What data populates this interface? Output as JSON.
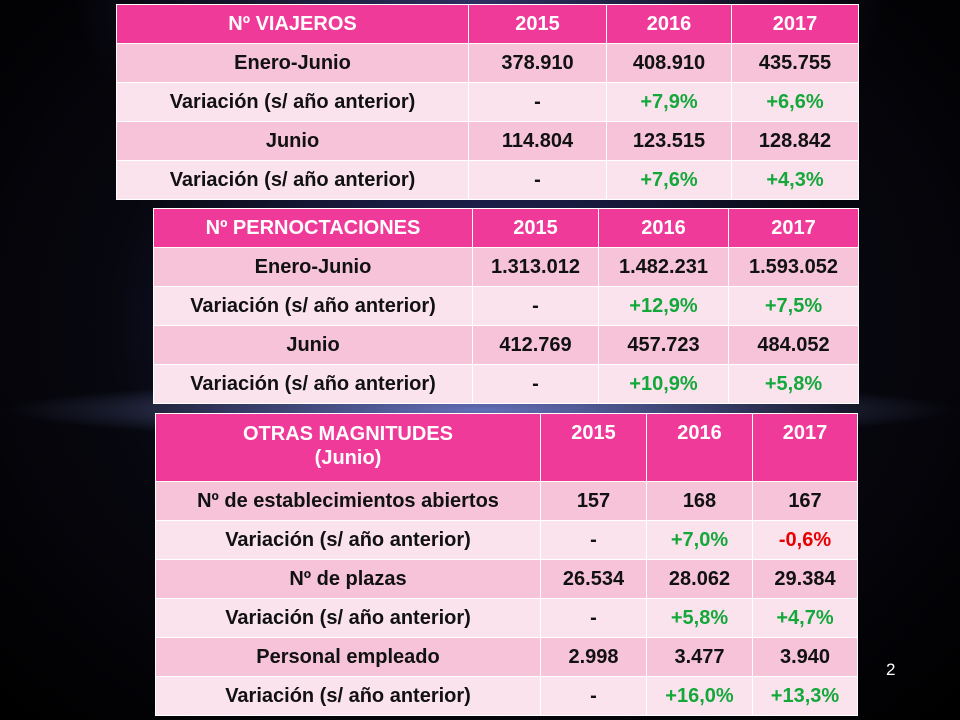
{
  "tables": [
    {
      "header": [
        "Nº VIAJEROS",
        "2015",
        "2016",
        "2017"
      ],
      "rows": [
        {
          "label": "Enero-Junio",
          "values": [
            "378.910",
            "408.910",
            "435.755"
          ]
        },
        {
          "label": "Variación (s/ año anterior)",
          "values": [
            "-",
            "+7,9%",
            "+6,6%"
          ]
        },
        {
          "label": "Junio",
          "values": [
            "114.804",
            "123.515",
            "128.842"
          ]
        },
        {
          "label": "Variación (s/ año anterior)",
          "values": [
            "-",
            "+7,6%",
            "+4,3%"
          ]
        }
      ]
    },
    {
      "header": [
        "Nº PERNOCTACIONES",
        "2015",
        "2016",
        "2017"
      ],
      "rows": [
        {
          "label": "Enero-Junio",
          "values": [
            "1.313.012",
            "1.482.231",
            "1.593.052"
          ]
        },
        {
          "label": "Variación (s/ año anterior)",
          "values": [
            "-",
            "+12,9%",
            "+7,5%"
          ]
        },
        {
          "label": "Junio",
          "values": [
            "412.769",
            "457.723",
            "484.052"
          ]
        },
        {
          "label": "Variación (s/ año anterior)",
          "values": [
            "-",
            "+10,9%",
            "+5,8%"
          ]
        }
      ]
    },
    {
      "header": [
        "OTRAS MAGNITUDES",
        "2015",
        "2016",
        "2017"
      ],
      "header_sub": "(Junio)",
      "rows": [
        {
          "label": "Nº de establecimientos abiertos",
          "values": [
            "157",
            "168",
            "167"
          ]
        },
        {
          "label": "Variación (s/ año anterior)",
          "values": [
            "-",
            "+7,0%",
            "-0,6%"
          ]
        },
        {
          "label": "Nº de plazas",
          "values": [
            "26.534",
            "28.062",
            "29.384"
          ]
        },
        {
          "label": "Variación (s/ año anterior)",
          "values": [
            "-",
            "+5,8%",
            "+4,7%"
          ]
        },
        {
          "label": "Personal empleado",
          "values": [
            "2.998",
            "3.477",
            "3.940"
          ]
        },
        {
          "label": "Variación (s/ año anterior)",
          "values": [
            "-",
            "+16,0%",
            "+13,3%"
          ]
        }
      ]
    }
  ],
  "colors": {
    "header_bg": "#f03a9a",
    "row_dark": "#f6c3d9",
    "row_light": "#fbe3ee",
    "positive": "#14a83b",
    "negative": "#e80000"
  },
  "page_number": "2"
}
